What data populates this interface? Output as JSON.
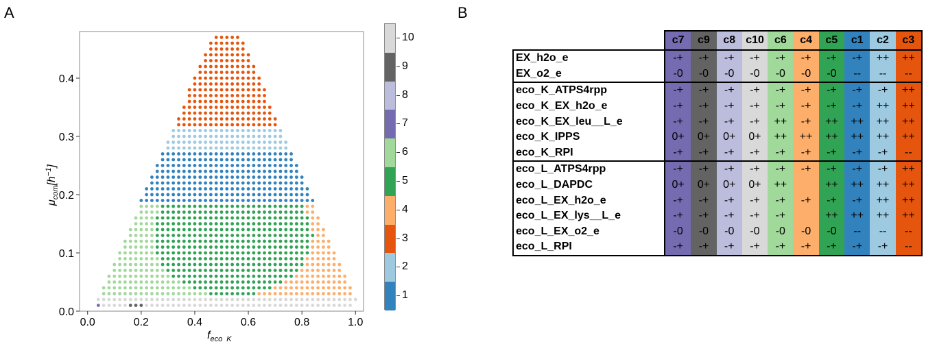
{
  "panels": {
    "a_label": "A",
    "b_label": "B"
  },
  "colors": {
    "1": "#3182bd",
    "2": "#9ecae1",
    "3": "#e6550d",
    "4": "#fdae6b",
    "5": "#31a354",
    "6": "#a1d99b",
    "7": "#756bb1",
    "8": "#bcbddc",
    "9": "#636363",
    "10": "#d9d9d9"
  },
  "chart_data": [
    {
      "type": "scatter",
      "title": "",
      "xlabel": "f_eco_K",
      "ylabel": "μ_com[h^-1]",
      "xlim": [
        -0.03,
        1.03
      ],
      "ylim": [
        0,
        0.48
      ],
      "xticks": [
        "0.0",
        "0.2",
        "0.4",
        "0.6",
        "0.8",
        "1.0"
      ],
      "yticks": [
        "0.0",
        "0.1",
        "0.2",
        "0.3",
        "0.4"
      ],
      "grid": false,
      "grid_step_x": 0.02,
      "grid_step_y": 0.01,
      "legend": "colorbar-right",
      "colorbar_ticks": [
        "1",
        "2",
        "3",
        "4",
        "5",
        "6",
        "7",
        "8",
        "9",
        "10"
      ],
      "regions": [
        {
          "cluster": 3,
          "description": "top apex",
          "mu_range": [
            0.32,
            0.47
          ]
        },
        {
          "cluster": 2,
          "mu_range": [
            0.28,
            0.31
          ]
        },
        {
          "cluster": 1,
          "mu_range": [
            0.18,
            0.27
          ]
        },
        {
          "cluster": 5,
          "mu_range": [
            0.09,
            0.19
          ]
        },
        {
          "cluster": 6,
          "mu_range": [
            0.02,
            0.14
          ],
          "side": "left"
        },
        {
          "cluster": 4,
          "mu_range": [
            0.02,
            0.14
          ],
          "side": "right"
        },
        {
          "cluster": 10,
          "mu_range": [
            0.01,
            0.02
          ]
        },
        {
          "cluster": 7,
          "mu_range": [
            0.01,
            0.01
          ],
          "x": [
            0.02,
            0.04
          ]
        },
        {
          "cluster": 9,
          "mu_range": [
            0.01,
            0.01
          ],
          "x": [
            0.16,
            0.2
          ]
        }
      ]
    },
    {
      "type": "heatmap",
      "columns": [
        {
          "label": "c7",
          "cluster": 7
        },
        {
          "label": "c9",
          "cluster": 9
        },
        {
          "label": "c8",
          "cluster": 8
        },
        {
          "label": "c10",
          "cluster": 10
        },
        {
          "label": "c6",
          "cluster": 6
        },
        {
          "label": "c4",
          "cluster": 4
        },
        {
          "label": "c5",
          "cluster": 5
        },
        {
          "label": "c1",
          "cluster": 1
        },
        {
          "label": "c2",
          "cluster": 2
        },
        {
          "label": "c3",
          "cluster": 3
        }
      ],
      "rows": [
        {
          "label": "EX_h2o_e",
          "group": 0,
          "cells": [
            "-+",
            "-+",
            "-+",
            "-+",
            "-+",
            "-+",
            "-+",
            "-+",
            "++",
            "++"
          ]
        },
        {
          "label": "EX_o2_e",
          "group": 0,
          "cells": [
            "-0",
            "-0",
            "-0",
            "-0",
            "-0",
            "-0",
            "-0",
            "--",
            "--",
            "--"
          ]
        },
        {
          "label": "eco_K_ATPS4rpp",
          "group": 1,
          "cells": [
            "-+",
            "-+",
            "-+",
            "-+",
            "-+",
            "-+",
            "-+",
            "-+",
            "-+",
            "++"
          ]
        },
        {
          "label": "eco_K_EX_h2o_e",
          "group": 1,
          "cells": [
            "-+",
            "-+",
            "-+",
            "-+",
            "-+",
            "-+",
            "-+",
            "-+",
            "++",
            "++"
          ]
        },
        {
          "label": "eco_K_EX_leu__L_e",
          "group": 1,
          "cells": [
            "-+",
            "-+",
            "-+",
            "-+",
            "++",
            "-+",
            "++",
            "++",
            "++",
            "++"
          ]
        },
        {
          "label": "eco_K_IPPS",
          "group": 1,
          "cells": [
            "0+",
            "0+",
            "0+",
            "0+",
            "++",
            "++",
            "++",
            "++",
            "++",
            "++"
          ]
        },
        {
          "label": "eco_K_RPI",
          "group": 1,
          "cells": [
            "-+",
            "-+",
            "-+",
            "-+",
            "-+",
            "-+",
            "-+",
            "-+",
            "-+",
            "--"
          ]
        },
        {
          "label": "eco_L_ATPS4rpp",
          "group": 2,
          "cells": [
            "-+",
            "-+",
            "-+",
            "-+",
            "-+",
            "-+",
            "-+",
            "-+",
            "-+",
            "++"
          ]
        },
        {
          "label": "eco_L_DAPDC",
          "group": 2,
          "cells": [
            "0+",
            "0+",
            "0+",
            "0+",
            "++",
            "",
            "++",
            "++",
            "++",
            "++"
          ]
        },
        {
          "label": "eco_L_EX_h2o_e",
          "group": 2,
          "cells": [
            "-+",
            "-+",
            "-+",
            "-+",
            "-+",
            "-+",
            "-+",
            "-+",
            "++",
            "++"
          ]
        },
        {
          "label": "eco_L_EX_lys__L_e",
          "group": 2,
          "cells": [
            "-+",
            "-+",
            "-+",
            "-+",
            "-+",
            "",
            "++",
            "++",
            "++",
            "++"
          ]
        },
        {
          "label": "eco_L_EX_o2_e",
          "group": 2,
          "cells": [
            "-0",
            "-0",
            "-0",
            "-0",
            "-0",
            "-0",
            "-0",
            "--",
            "--",
            "--"
          ]
        },
        {
          "label": "eco_L_RPI",
          "group": 2,
          "cells": [
            "-+",
            "-+",
            "-+",
            "-+",
            "-+",
            "-+",
            "-+",
            "-+",
            "-+",
            "--"
          ]
        }
      ]
    }
  ]
}
